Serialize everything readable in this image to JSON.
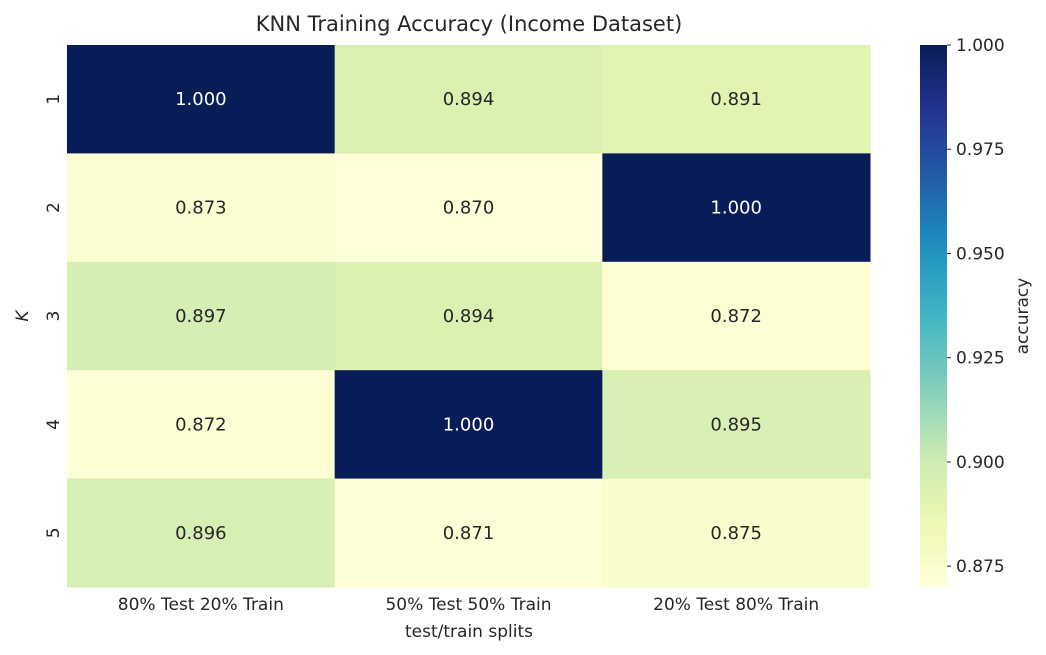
{
  "chart_data": {
    "type": "heatmap",
    "title": "KNN Training Accuracy (Income Dataset)",
    "xlabel": "test/train splits",
    "ylabel": "K",
    "x_categories": [
      "80% Test 20% Train",
      "50% Test 50% Train",
      "20% Test 80% Train"
    ],
    "y_categories": [
      "1",
      "2",
      "3",
      "4",
      "5"
    ],
    "values": [
      [
        1.0,
        0.894,
        0.891
      ],
      [
        0.873,
        0.87,
        1.0
      ],
      [
        0.897,
        0.894,
        0.872
      ],
      [
        0.872,
        1.0,
        0.895
      ],
      [
        0.896,
        0.871,
        0.875
      ]
    ],
    "value_format": "0.000",
    "colorbar": {
      "label": "accuracy",
      "range": [
        0.87,
        1.0
      ],
      "ticks": [
        "0.875",
        "0.900",
        "0.925",
        "0.950",
        "0.975",
        "1.000"
      ],
      "colormap": "YlGnBu"
    },
    "grid": false
  }
}
